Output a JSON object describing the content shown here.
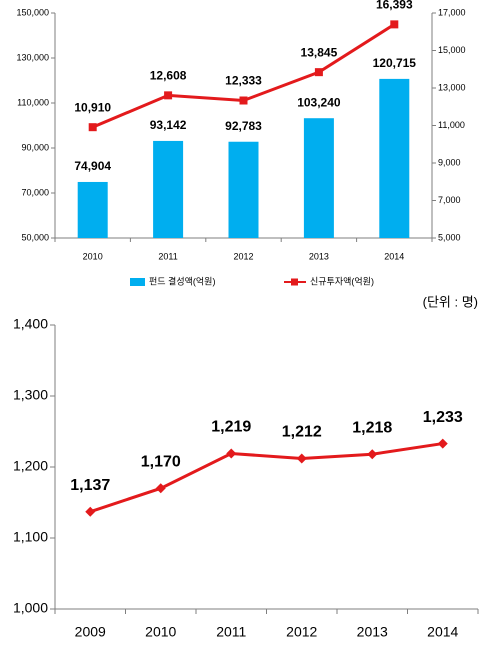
{
  "colors": {
    "bar": "#00aeef",
    "line": "#e31a1c",
    "marker": "#e31a1c",
    "axis": "#7f7f7f",
    "grid": "#e6e6e6",
    "text": "#000000"
  },
  "chart_data": [
    {
      "type": "bar",
      "categories": [
        "2010",
        "2011",
        "2012",
        "2013",
        "2014"
      ],
      "series": [
        {
          "name": "펀드 결성액(억원)",
          "type": "bar",
          "axis": "left",
          "values": [
            74904,
            93142,
            92783,
            103240,
            120715
          ],
          "labels": [
            "74,904",
            "93,142",
            "92,783",
            "103,240",
            "120,715"
          ],
          "color": "#00aeef"
        },
        {
          "name": "신규투자액(억원)",
          "type": "line",
          "axis": "right",
          "marker": "square",
          "values": [
            10910,
            12608,
            12333,
            13845,
            16393
          ],
          "labels": [
            "10,910",
            "12,608",
            "12,333",
            "13,845",
            "16,393"
          ],
          "color": "#e31a1c"
        }
      ],
      "ylim": [
        50000,
        150000
      ],
      "yticks": [
        "50,000",
        "70,000",
        "90,000",
        "110,000",
        "130,000",
        "150,000"
      ],
      "y2lim": [
        5000,
        17000
      ],
      "y2ticks": [
        "5,000",
        "7,000",
        "9,000",
        "11,000",
        "13,000",
        "15,000",
        "17,000"
      ],
      "grid": false,
      "legend": "bottom"
    },
    {
      "type": "line",
      "unit_label": "(단위 : 명)",
      "categories": [
        "2009",
        "2010",
        "2011",
        "2012",
        "2013",
        "2014"
      ],
      "series": [
        {
          "marker": "diamond",
          "values": [
            1137,
            1170,
            1219,
            1212,
            1218,
            1233
          ],
          "labels": [
            "1,137",
            "1,170",
            "1,219",
            "1,212",
            "1,218",
            "1,233"
          ],
          "color": "#e31a1c"
        }
      ],
      "ylim": [
        1000,
        1400
      ],
      "yticks": [
        "1,000",
        "1,100",
        "1,200",
        "1,300",
        "1,400"
      ],
      "grid": false,
      "legend": "none"
    }
  ]
}
